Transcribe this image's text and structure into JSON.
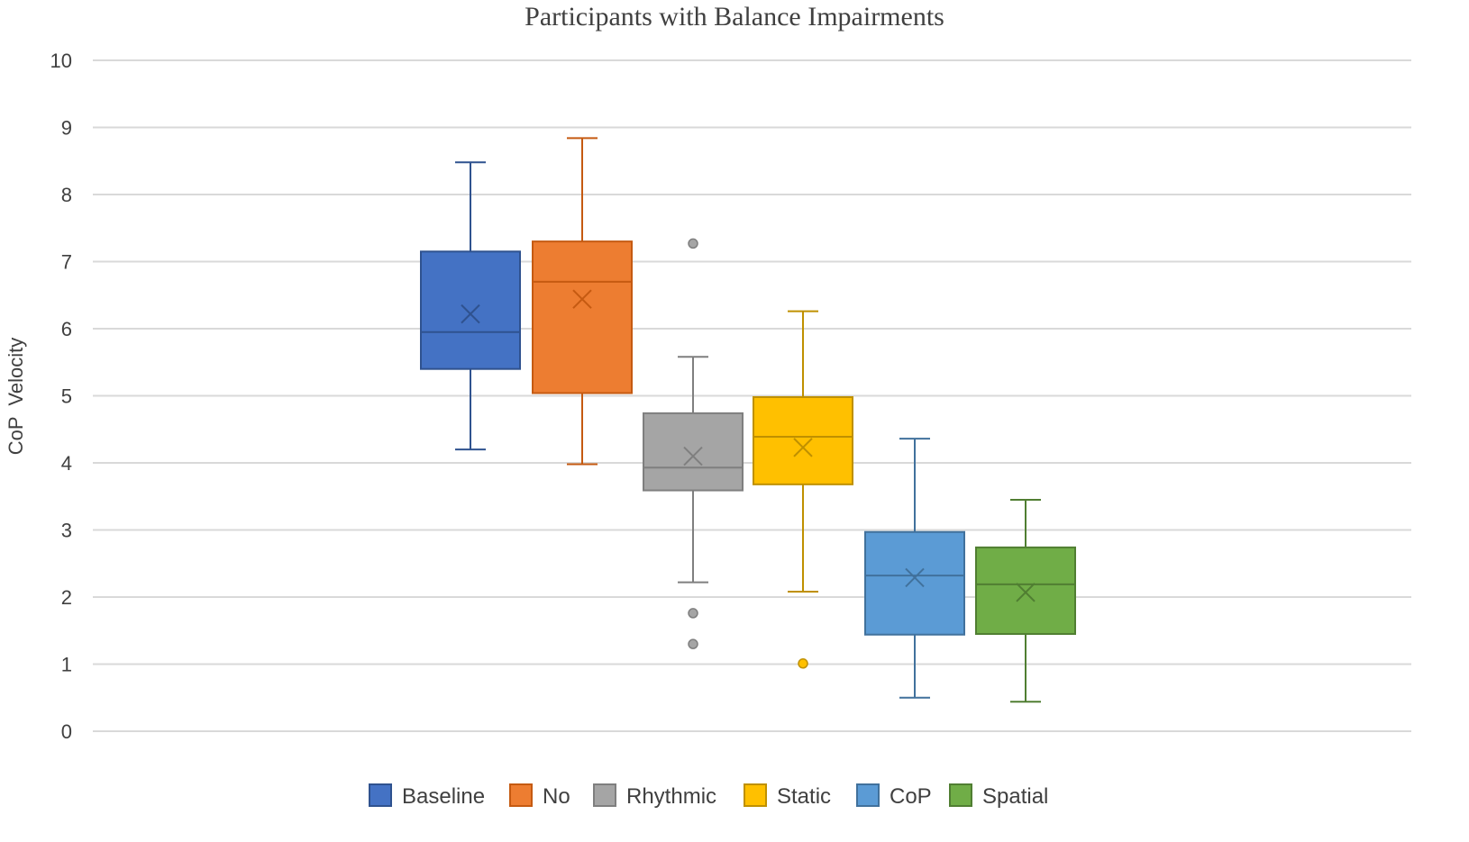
{
  "chart_data": {
    "type": "box",
    "title": "Participants with Balance Impairments",
    "xlabel": "",
    "ylabel": "CoP  Velocity",
    "ylim": [
      0,
      10
    ],
    "yticks": [
      0,
      1,
      2,
      3,
      4,
      5,
      6,
      7,
      8,
      9,
      10
    ],
    "grid": true,
    "legend_position": "bottom",
    "series": [
      {
        "name": "Baseline",
        "color": "#4472C4",
        "edge": "#2F528F",
        "whisker_low": 4.2,
        "q1": 5.4,
        "median": 5.95,
        "q3": 7.15,
        "whisker_high": 8.48,
        "mean": 6.22,
        "outliers": []
      },
      {
        "name": "No",
        "color": "#ED7D31",
        "edge": "#C55A11",
        "whisker_low": 3.98,
        "q1": 5.04,
        "median": 6.7,
        "q3": 7.3,
        "whisker_high": 8.84,
        "mean": 6.44,
        "outliers": []
      },
      {
        "name": "Rhythmic",
        "color": "#A5A5A5",
        "edge": "#7F7F7F",
        "whisker_low": 2.22,
        "q1": 3.59,
        "median": 3.93,
        "q3": 4.74,
        "whisker_high": 5.58,
        "mean": 4.1,
        "outliers": [
          7.27,
          1.76,
          1.3
        ]
      },
      {
        "name": "Static",
        "color": "#FFC000",
        "edge": "#BF9000",
        "whisker_low": 2.08,
        "q1": 3.68,
        "median": 4.39,
        "q3": 4.98,
        "whisker_high": 6.26,
        "mean": 4.23,
        "outliers": [
          1.01
        ]
      },
      {
        "name": "CoP",
        "color": "#5B9BD5",
        "edge": "#41719C",
        "whisker_low": 0.5,
        "q1": 1.44,
        "median": 2.32,
        "q3": 2.97,
        "whisker_high": 4.36,
        "mean": 2.29,
        "outliers": []
      },
      {
        "name": "Spatial",
        "color": "#70AD47",
        "edge": "#507E32",
        "whisker_low": 0.44,
        "q1": 1.45,
        "median": 2.19,
        "q3": 2.74,
        "whisker_high": 3.45,
        "mean": 2.07,
        "outliers": []
      }
    ]
  }
}
